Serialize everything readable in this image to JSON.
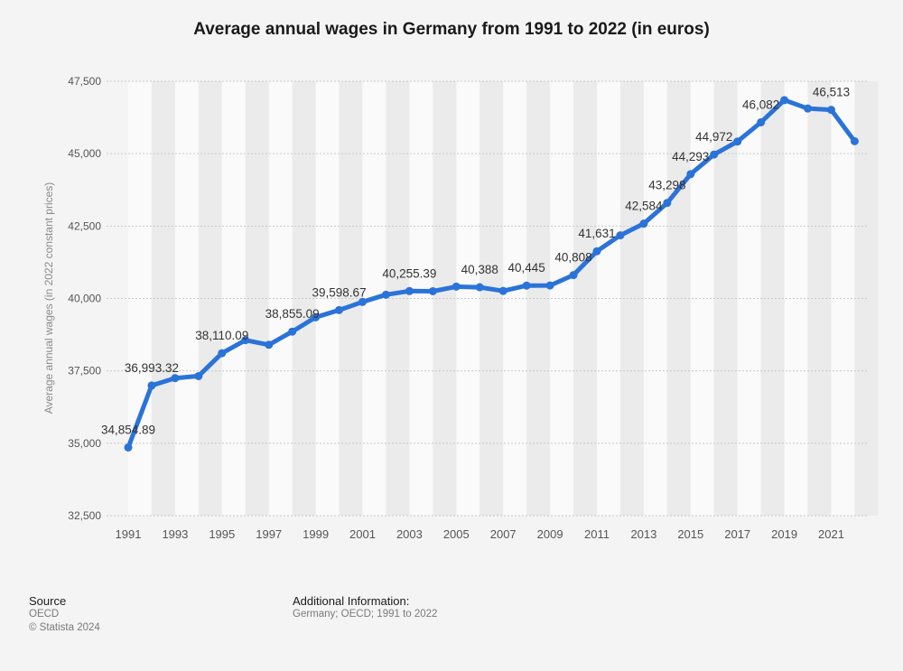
{
  "title": "Average annual wages in Germany from 1991 to 2022 (in euros)",
  "footer": {
    "source_heading": "Source",
    "source_name": "OECD",
    "copyright": "© Statista 2024",
    "additional_heading": "Additional Information:",
    "additional_text": "Germany; OECD; 1991 to 2022"
  },
  "colors": {
    "line": "#2a73d9",
    "background": "#f4f4f4",
    "band": "#ebebeb",
    "grid": "#c9c9c9"
  },
  "chart_data": {
    "type": "line",
    "title": "Average annual wages in Germany from 1991 to 2022 (in euros)",
    "ylabel": "Average annual wages (in 2022 constant prices)",
    "xlabel": "",
    "ylim": [
      32500,
      47500
    ],
    "yticks": [
      "32,500",
      "35,000",
      "37,500",
      "40,000",
      "42,500",
      "45,000",
      "47,500"
    ],
    "ytick_values": [
      32500,
      35000,
      37500,
      40000,
      42500,
      45000,
      47500
    ],
    "xtick_labels": [
      "1991",
      "1993",
      "1995",
      "1997",
      "1999",
      "2001",
      "2003",
      "2005",
      "2007",
      "2009",
      "2011",
      "2013",
      "2015",
      "2017",
      "2019",
      "2021"
    ],
    "grid": true,
    "legend": "none",
    "x": [
      1991,
      1992,
      1993,
      1994,
      1995,
      1996,
      1997,
      1998,
      1999,
      2000,
      2001,
      2002,
      2003,
      2004,
      2005,
      2006,
      2007,
      2008,
      2009,
      2010,
      2011,
      2012,
      2013,
      2014,
      2015,
      2016,
      2017,
      2018,
      2019,
      2020,
      2021,
      2022
    ],
    "values": [
      34854.89,
      36993.32,
      37250,
      37320,
      38110.09,
      38560,
      38400,
      38855.09,
      39350,
      39598.67,
      39880,
      40130,
      40255.39,
      40250,
      40410,
      40388,
      40260,
      40445,
      40450,
      40808,
      41631,
      42180,
      42584,
      43298,
      44293,
      44972,
      45420,
      46082,
      46850,
      46560,
      46513,
      45430
    ],
    "data_labels": [
      {
        "year": 1991,
        "text": "34,854.89"
      },
      {
        "year": 1992,
        "text": "36,993.32"
      },
      {
        "year": 1995,
        "text": "38,110.09"
      },
      {
        "year": 1998,
        "text": "38,855.09"
      },
      {
        "year": 2000,
        "text": "39,598.67"
      },
      {
        "year": 2003,
        "text": "40,255.39"
      },
      {
        "year": 2006,
        "text": "40,388"
      },
      {
        "year": 2008,
        "text": "40,445"
      },
      {
        "year": 2010,
        "text": "40,808"
      },
      {
        "year": 2011,
        "text": "41,631"
      },
      {
        "year": 2013,
        "text": "42,584"
      },
      {
        "year": 2014,
        "text": "43,298"
      },
      {
        "year": 2015,
        "text": "44,293"
      },
      {
        "year": 2016,
        "text": "44,972"
      },
      {
        "year": 2018,
        "text": "46,082"
      },
      {
        "year": 2021,
        "text": "46,513"
      }
    ]
  }
}
